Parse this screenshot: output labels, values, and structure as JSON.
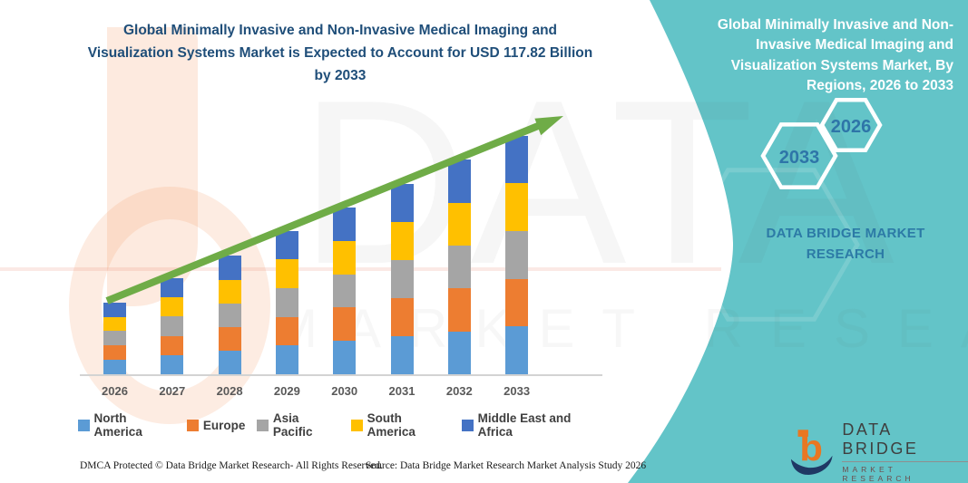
{
  "chart_data": {
    "type": "bar",
    "subtype": "stacked-column",
    "title": "Global Minimally Invasive and Non-Invasive Medical Imaging and Visualization Systems Market is Expected to Account for USD 117.82 Billion by 2033",
    "unit": "USD Billion",
    "categories": [
      "2026",
      "2027",
      "2028",
      "2029",
      "2030",
      "2031",
      "2032",
      "2033"
    ],
    "series": [
      {
        "name": "North America",
        "color": "#5B9BD5",
        "values": [
          7.1,
          9.5,
          11.7,
          14.2,
          16.5,
          18.8,
          21.2,
          23.6
        ]
      },
      {
        "name": "Europe",
        "color": "#ED7D31",
        "values": [
          7.1,
          9.5,
          11.7,
          14.2,
          16.5,
          18.8,
          21.2,
          23.6
        ]
      },
      {
        "name": "Asia Pacific",
        "color": "#A5A5A5",
        "values": [
          7.1,
          9.5,
          11.7,
          14.2,
          16.5,
          18.8,
          21.2,
          23.6
        ]
      },
      {
        "name": "South America",
        "color": "#FFC000",
        "values": [
          7.1,
          9.5,
          11.7,
          14.2,
          16.5,
          18.8,
          21.2,
          23.6
        ]
      },
      {
        "name": "Middle East and Africa",
        "color": "#4472C4",
        "values": [
          7.1,
          9.5,
          11.7,
          14.2,
          16.5,
          18.8,
          21.2,
          23.4
        ]
      }
    ],
    "totals": [
      35.5,
      47.5,
      58.5,
      71.0,
      82.5,
      94.0,
      106.0,
      117.8
    ],
    "ylim": [
      0,
      130
    ],
    "grid": false,
    "legend_position": "bottom",
    "annotations": [
      "green upward trend arrow from 2026 to 2033"
    ]
  },
  "left": {
    "footer_left": "DMCA Protected © Data Bridge Market Research-  All Rights Reserved.",
    "footer_source": "Source: Data Bridge Market Research  Market Analysis Study 2026"
  },
  "right_panel": {
    "bg_color": "#63C4C8",
    "title": "Global Minimally Invasive and Non-Invasive Medical Imaging and Visualization Systems Market, By Regions, 2026 to 2033",
    "hexagons": [
      {
        "label": "2033"
      },
      {
        "label": "2026"
      }
    ],
    "brand_text": "DATA BRIDGE MARKET RESEARCH",
    "logo": {
      "letter": "b",
      "name": "DATA BRIDGE",
      "subtitle": "MARKET RESEARCH"
    }
  },
  "watermark": {
    "line1": "DATA BRIDGE",
    "line2": "MARKET RESEARCH"
  },
  "colors": {
    "title_navy": "#1F4E79",
    "arrow_green": "#6FAC47",
    "teal_panel": "#63C4C8",
    "hex_text_blue": "#2E75A8",
    "brand_blue": "#2C7AA6"
  }
}
